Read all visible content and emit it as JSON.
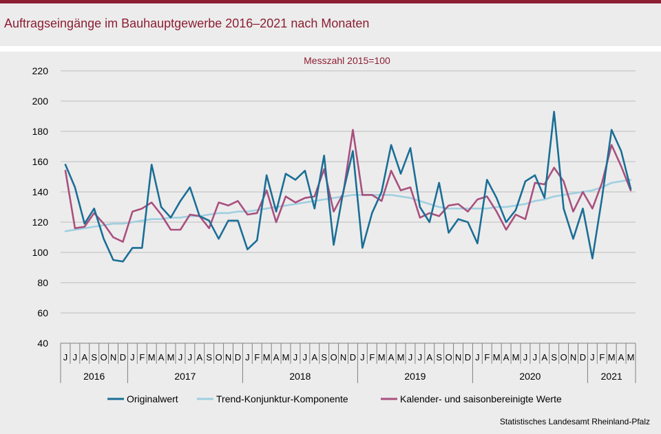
{
  "page": {
    "title": "Auftragseingänge im Bauhauptgewerbe 2016–2021 nach Monaten"
  },
  "chart_data": {
    "type": "line",
    "title": "Auftragseingänge im Bauhauptgewerbe 2016–2021 nach Monaten",
    "subtitle": "Messzahl  2015=100",
    "source": "Statistisches Landesamt  Rheinland-Pfalz",
    "ylim": [
      40,
      220
    ],
    "yticks": [
      40,
      60,
      80,
      100,
      120,
      140,
      160,
      180,
      200,
      220
    ],
    "grid": true,
    "legend_position": "bottom",
    "colors": {
      "accent": "#8c1e33",
      "original": "#1a6e96",
      "trend": "#9fcfe0",
      "adjusted": "#a8507e"
    },
    "month_labels": [
      "J",
      "J",
      "A",
      "S",
      "O",
      "N",
      "D",
      "J",
      "F",
      "M",
      "A",
      "M",
      "J",
      "J",
      "A",
      "S",
      "O",
      "N",
      "D",
      "J",
      "F",
      "M",
      "A",
      "M",
      "J",
      "J",
      "A",
      "S",
      "O",
      "N",
      "D",
      "J",
      "F",
      "M",
      "A",
      "M",
      "J",
      "J",
      "A",
      "S",
      "O",
      "N",
      "D",
      "J",
      "F",
      "M",
      "A",
      "M",
      "J",
      "J",
      "A",
      "S",
      "O",
      "N",
      "D",
      "J",
      "F",
      "M",
      "A",
      "M"
    ],
    "years": [
      {
        "label": "2016",
        "start": 0,
        "count": 7
      },
      {
        "label": "2017",
        "start": 7,
        "count": 12
      },
      {
        "label": "2018",
        "start": 19,
        "count": 12
      },
      {
        "label": "2019",
        "start": 31,
        "count": 12
      },
      {
        "label": "2020",
        "start": 43,
        "count": 12
      },
      {
        "label": "2021",
        "start": 55,
        "count": 5
      }
    ],
    "series": [
      {
        "name": "Originalwert",
        "values": [
          158,
          143,
          119,
          129,
          109,
          95,
          94,
          103,
          103,
          158,
          130,
          123,
          134,
          143,
          124,
          121,
          109,
          121,
          121,
          102,
          108,
          151,
          127,
          152,
          148,
          154,
          129,
          164,
          105,
          140,
          167,
          103,
          126,
          140,
          171,
          152,
          169,
          130,
          120,
          146,
          113,
          122,
          120,
          106,
          148,
          136,
          120,
          128,
          147,
          151,
          136,
          193,
          129,
          109,
          129,
          96,
          136,
          181,
          167,
          142
        ]
      },
      {
        "name": "Trend-Konjunktur-Komponente",
        "values": [
          114,
          115,
          116,
          117,
          118,
          119,
          119,
          120,
          121,
          122,
          122,
          123,
          123,
          124,
          124,
          125,
          126,
          126,
          127,
          127,
          128,
          129,
          130,
          131,
          132,
          133,
          134,
          135,
          136,
          137,
          138,
          138,
          138,
          138,
          138,
          137,
          136,
          134,
          132,
          130,
          129,
          129,
          129,
          129,
          129,
          130,
          130,
          131,
          132,
          134,
          135,
          137,
          138,
          139,
          140,
          141,
          143,
          146,
          147,
          148
        ]
      },
      {
        "name": "Kalender- und saisonbereinigte Werte",
        "values": [
          154,
          116,
          117,
          126,
          119,
          110,
          107,
          127,
          129,
          133,
          125,
          115,
          115,
          125,
          124,
          116,
          133,
          131,
          134,
          125,
          126,
          141,
          120,
          137,
          133,
          136,
          137,
          155,
          127,
          139,
          181,
          138,
          138,
          134,
          154,
          141,
          143,
          123,
          126,
          124,
          131,
          132,
          127,
          135,
          137,
          127,
          115,
          125,
          122,
          146,
          145,
          156,
          147,
          127,
          140,
          129,
          146,
          171,
          157,
          141
        ]
      }
    ]
  }
}
